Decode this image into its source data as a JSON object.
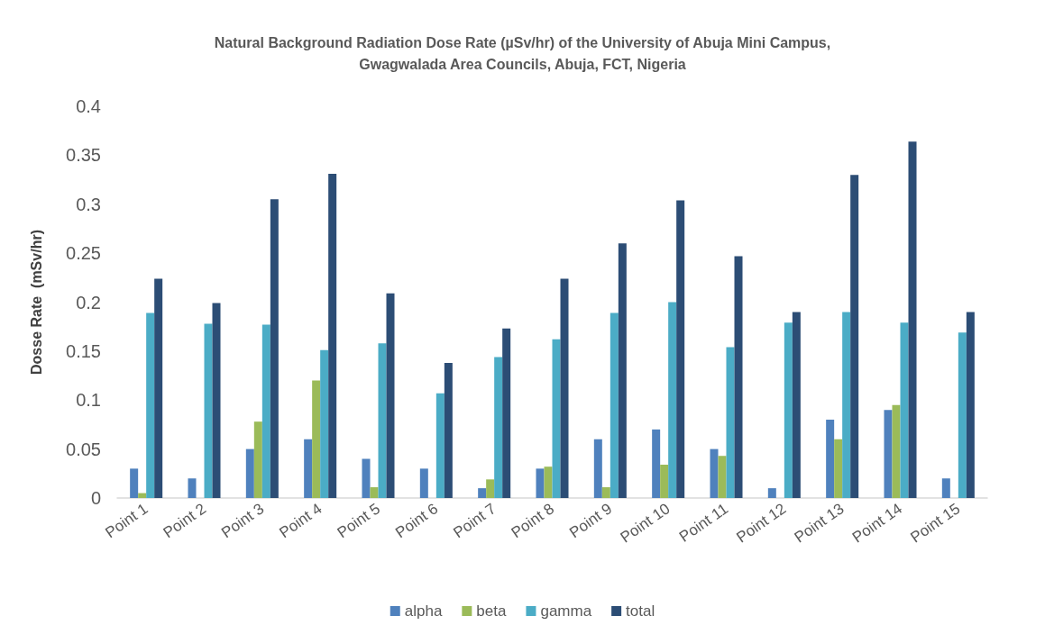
{
  "chart_data": {
    "type": "bar",
    "title": "Natural Background Radiation Dose Rate (µSv/hr) of the University of Abuja Mini Campus,\nGwagwalada Area Councils, Abuja, FCT, Nigeria",
    "ylabel": "Dosse Rate  (mSv/hr)",
    "categories": [
      "Point 1",
      "Point 2",
      "Point 3",
      "Point 4",
      "Point 5",
      "Point 6",
      "Point 7",
      "Point 8",
      "Point 9",
      "Point 10",
      "Point 11",
      "Point 12",
      "Point 13",
      "Point 14",
      "Point 15"
    ],
    "series": [
      {
        "name": "alpha",
        "color": "#4f81bd",
        "values": [
          0.03,
          0.02,
          0.05,
          0.06,
          0.04,
          0.03,
          0.01,
          0.03,
          0.06,
          0.07,
          0.05,
          0.01,
          0.08,
          0.09,
          0.02
        ]
      },
      {
        "name": "beta",
        "color": "#9bbb59",
        "values": [
          0.005,
          0,
          0.078,
          0.12,
          0.011,
          0,
          0.019,
          0.032,
          0.011,
          0.034,
          0.043,
          0,
          0.06,
          0.095,
          0
        ]
      },
      {
        "name": "gamma",
        "color": "#4bacc6",
        "values": [
          0.189,
          0.178,
          0.177,
          0.151,
          0.158,
          0.107,
          0.144,
          0.162,
          0.189,
          0.2,
          0.154,
          0.179,
          0.19,
          0.179,
          0.169
        ]
      },
      {
        "name": "total",
        "color": "#2c4d75",
        "values": [
          0.224,
          0.199,
          0.305,
          0.331,
          0.209,
          0.138,
          0.173,
          0.224,
          0.26,
          0.304,
          0.247,
          0.19,
          0.33,
          0.364,
          0.19
        ]
      }
    ],
    "ylim": [
      0,
      0.4
    ],
    "yticks": [
      0,
      0.05,
      0.1,
      0.15,
      0.2,
      0.25,
      0.3,
      0.35,
      0.4
    ],
    "grid": false,
    "legend": "bottom"
  }
}
